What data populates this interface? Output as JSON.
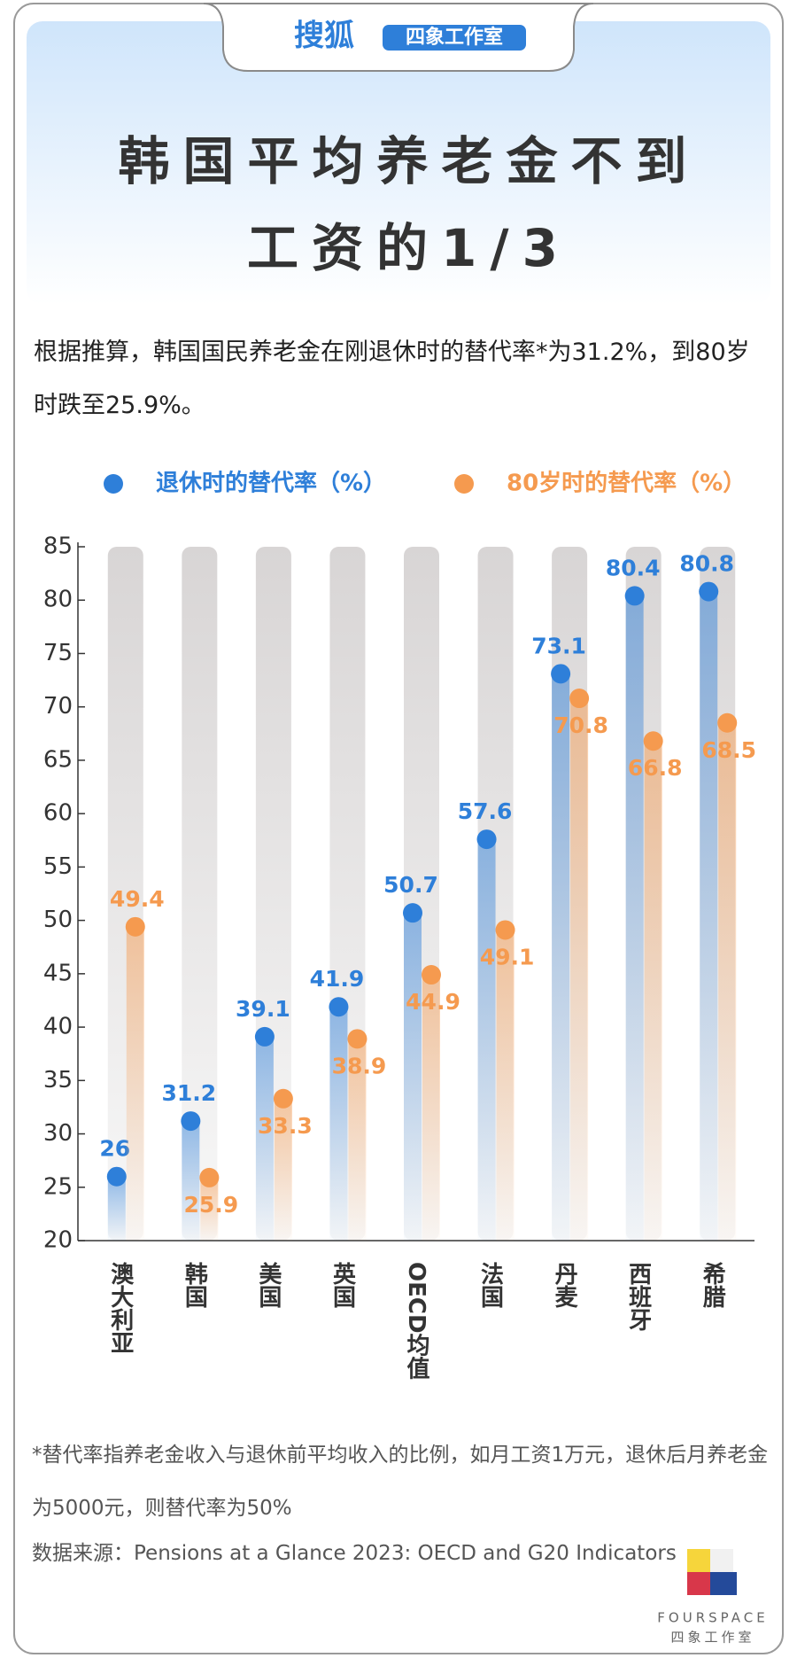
{
  "header": {
    "brand": "搜狐",
    "badge": "四象工作室",
    "title_lines": [
      "韩国平均养老金不到",
      "工资的1/3"
    ],
    "subtitle": "根据推算，韩国国民养老金在刚退休时的替代率*为31.2%，到80岁时跌至25.9%。"
  },
  "chart_data": {
    "type": "bar",
    "categories": [
      "澳大利亚",
      "韩国",
      "美国",
      "英国",
      "OECD均值",
      "法国",
      "丹麦",
      "西班牙",
      "希腊"
    ],
    "series": [
      {
        "name": "退休时的替代率（%）",
        "color": "#2e7fd9",
        "values": [
          26,
          31.2,
          39.1,
          41.9,
          50.7,
          57.6,
          73.1,
          80.4,
          80.8
        ]
      },
      {
        "name": "80岁时的替代率（%）",
        "color": "#f59a4f",
        "values": [
          49.4,
          25.9,
          33.3,
          38.9,
          44.9,
          49.1,
          70.8,
          66.8,
          68.5
        ]
      }
    ],
    "ylim": [
      20,
      85
    ],
    "yticks": [
      20,
      25,
      30,
      35,
      40,
      45,
      50,
      55,
      60,
      65,
      70,
      75,
      80,
      85
    ],
    "legend": "top"
  },
  "footnote": "*替代率指养老金收入与退休前平均收入的比例，如月工资1万元，退休后月养老金为5000元，则替代率为50%",
  "source": "数据来源：Pensions at a Glance 2023: OECD and G20 Indicators",
  "logo": {
    "name": "FOURSPACE",
    "label": "四象工作室"
  }
}
